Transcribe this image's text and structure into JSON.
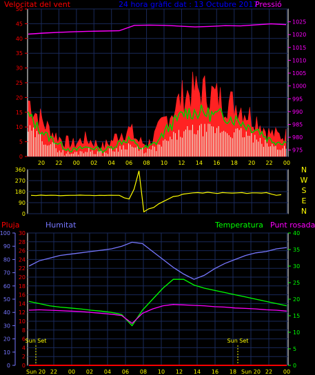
{
  "colors": {
    "background": "#000000",
    "frame": "#ffffff",
    "grid": "#1a2a5a",
    "wind_speed": "#ff0000",
    "wind_gust": "#ff2222",
    "wind_avg": "#00cc00",
    "wind_min": "#e8ffe8",
    "pressure": "#ff00ff",
    "direction": "#ffff00",
    "rain": "#ff0000",
    "humidity": "#7777ff",
    "temperature": "#00ff00",
    "dewpoint": "#ff00ff",
    "title": "#0000ff",
    "sunset": "#ffff00",
    "xtick": "#ffff00"
  },
  "chart_data": [
    {
      "type": "area",
      "title": "24 hora gràfic dat : 13 Octubre 2017",
      "left_label": "Velocitat del vent",
      "right_label": "Pressió",
      "x": [
        "20",
        "22",
        "00",
        "02",
        "04",
        "06",
        "08",
        "10",
        "12",
        "14",
        "16",
        "18",
        "20",
        "22",
        "00"
      ],
      "y_left": {
        "range": [
          0,
          50
        ],
        "ticks": [
          0,
          5,
          10,
          15,
          20,
          25,
          30,
          35,
          40,
          45,
          50
        ]
      },
      "y_right": {
        "range": [
          972.5,
          1030
        ],
        "ticks": [
          975,
          980,
          985,
          990,
          995,
          1000,
          1005,
          1010,
          1015,
          1020,
          1025
        ]
      },
      "pressure_hpa": [
        1020.2,
        1020.6,
        1020.9,
        1021.1,
        1021.3,
        1021.4,
        1021.5,
        1023.6,
        1023.7,
        1023.6,
        1023.3,
        1023.0,
        1023.2,
        1023.5,
        1023.4,
        1023.8,
        1024.2,
        1023.9
      ],
      "wind_gust": [
        19,
        14,
        10,
        7,
        5,
        4,
        6,
        5,
        3,
        5,
        8,
        9,
        5,
        4,
        8,
        13,
        17,
        21,
        22,
        22,
        21,
        19,
        18,
        17,
        14,
        12,
        8,
        7,
        7
      ],
      "wind_avg": [
        14,
        10,
        7,
        5,
        3,
        2,
        3,
        3,
        2,
        3,
        5,
        6,
        3,
        3,
        5,
        9,
        12,
        15,
        15,
        15,
        14,
        14,
        13,
        12,
        10,
        9,
        6,
        5,
        5
      ],
      "wind_min": [
        9,
        7,
        5,
        3,
        1,
        1,
        2,
        2,
        1,
        2,
        3,
        4,
        2,
        2,
        3,
        5,
        7,
        8,
        9,
        9,
        9,
        9,
        8,
        8,
        7,
        5,
        4,
        3,
        3
      ]
    },
    {
      "type": "line",
      "right_labels": [
        "N",
        "W",
        "S",
        "E",
        "N"
      ],
      "y": {
        "range": [
          0,
          360
        ],
        "ticks": [
          0,
          90,
          180,
          270,
          360
        ]
      },
      "direction_deg": [
        150,
        148,
        152,
        149,
        151,
        150,
        147,
        149,
        150,
        150,
        152,
        150,
        150,
        148,
        150,
        149,
        151,
        150,
        150,
        130,
        120,
        200,
        350,
        15,
        40,
        50,
        80,
        100,
        120,
        140,
        145,
        160,
        165,
        170,
        172,
        168,
        175,
        170,
        165,
        172,
        170,
        168,
        170,
        172,
        165,
        170,
        170,
        168,
        172,
        160,
        150,
        155
      ]
    },
    {
      "type": "line",
      "labels": {
        "rain": "Pluja",
        "humidity": "Humitat",
        "temperature": "Temperatura",
        "dewpoint": "Punt rosada"
      },
      "x_labels": [
        "Sun 20",
        "22",
        "00",
        "02",
        "04",
        "06",
        "08",
        "10",
        "12",
        "14",
        "16",
        "18",
        "Sun 20",
        "22",
        "00"
      ],
      "axes": {
        "humidity": {
          "range": [
            0,
            100
          ],
          "ticks": [
            0,
            10,
            20,
            30,
            40,
            50,
            60,
            70,
            80,
            90,
            100
          ]
        },
        "temperature_left": {
          "range": [
            0,
            30
          ],
          "ticks": [
            0,
            2,
            4,
            6,
            8,
            10,
            12,
            14,
            16,
            18,
            20,
            22,
            24,
            26,
            28,
            30
          ]
        },
        "temperature_right": {
          "range": [
            0,
            40
          ],
          "ticks": [
            0,
            5,
            10,
            15,
            20,
            25,
            30,
            35,
            40
          ]
        }
      },
      "humidity_pct": [
        75,
        79,
        81,
        83,
        84,
        85,
        86,
        87,
        88,
        90,
        93,
        92,
        86,
        80,
        74,
        69,
        65,
        68,
        73,
        77,
        80,
        83,
        85,
        86,
        88,
        89
      ],
      "temperature_c": [
        14.5,
        14.0,
        13.5,
        13.2,
        13.0,
        12.8,
        12.5,
        12.3,
        12.0,
        11.5,
        9.0,
        12.5,
        15.0,
        17.5,
        19.5,
        19.5,
        18.2,
        17.5,
        17.0,
        16.5,
        16.0,
        15.5,
        15.0,
        14.5,
        14.0,
        13.5
      ],
      "dewpoint_c": [
        12.5,
        12.6,
        12.5,
        12.4,
        12.3,
        12.2,
        12.0,
        11.8,
        11.6,
        11.3,
        9.5,
        11.8,
        12.8,
        13.5,
        13.8,
        13.7,
        13.6,
        13.5,
        13.3,
        13.2,
        13.0,
        12.9,
        12.8,
        12.6,
        12.5,
        12.3
      ],
      "rain_mm": [
        0,
        0,
        0,
        0,
        0,
        0,
        0,
        0,
        0,
        0,
        0,
        0,
        0,
        0,
        0,
        0,
        0,
        0,
        0,
        0,
        0,
        0,
        0,
        0,
        0,
        0
      ],
      "annotations": [
        "Sun Set",
        "Sun Set"
      ]
    }
  ]
}
